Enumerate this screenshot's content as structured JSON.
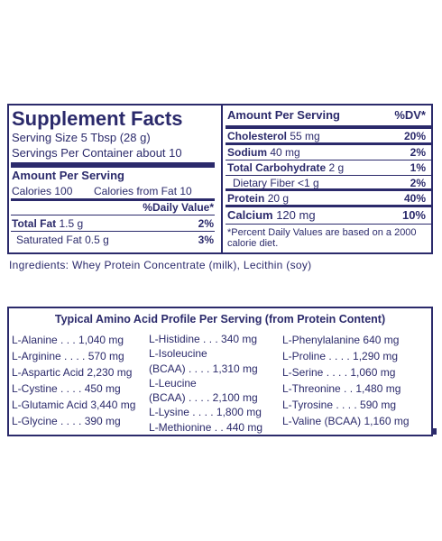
{
  "supplement_facts": {
    "title": "Supplement Facts",
    "serving_size": "Serving Size 5 Tbsp (28 g)",
    "servings_per_container": "Servings Per Container about 10",
    "amount_per_serving": "Amount Per Serving",
    "calories": "Calories 100",
    "calories_from_fat": "Calories from Fat 10",
    "daily_value_header": "%Daily Value*",
    "left_rows": [
      {
        "label": "Total Fat",
        "amount": "1.5 g",
        "dv": "2%"
      },
      {
        "label": "Saturated Fat",
        "amount": "0.5 g",
        "dv": "3%"
      }
    ],
    "right_header": {
      "label": "Amount Per Serving",
      "dv": "%DV*"
    },
    "right_rows": [
      {
        "label": "Cholesterol",
        "amount": "55 mg",
        "dv": "20%"
      },
      {
        "label": "Sodium",
        "amount": "40 mg",
        "dv": "2%"
      },
      {
        "label": "Total Carbohydrate",
        "amount": "2 g",
        "dv": "1%"
      },
      {
        "label": "Dietary Fiber",
        "amount": "<1 g",
        "dv": "2%"
      },
      {
        "label": "Protein",
        "amount": "20 g",
        "dv": "40%"
      },
      {
        "label": "Calcium",
        "amount": "120 mg",
        "dv": "10%"
      }
    ],
    "footnote": "*Percent Daily Values are based on a 2000 calorie diet."
  },
  "ingredients": "Ingredients: Whey Protein Concentrate (milk), Lecithin (soy)",
  "amino_acids": {
    "title": "Typical Amino Acid Profile Per Serving (from Protein Content)",
    "columns": [
      [
        "L-Alanine . . . 1,040 mg",
        "L-Arginine . . . . 570 mg",
        "L-Aspartic Acid 2,230 mg",
        "L-Cystine . . . . 450 mg",
        "L-Glutamic Acid 3,440 mg",
        "L-Glycine . . . . 390 mg"
      ],
      [
        "L-Histidine . . . 340 mg",
        "L-Isoleucine",
        "(BCAA) . . . . 1,310 mg",
        "L-Leucine",
        "(BCAA) . . . . 2,100 mg",
        "L-Lysine . . . . 1,800 mg",
        "L-Methionine . . 440 mg"
      ],
      [
        "L-Phenylalanine  640 mg",
        "L-Proline . . . . 1,290 mg",
        "L-Serine . . . . 1,060 mg",
        "L-Threonine . . 1,480 mg",
        "L-Tyrosine . . . . 590 mg",
        "L-Valine (BCAA) 1,160 mg"
      ]
    ]
  }
}
